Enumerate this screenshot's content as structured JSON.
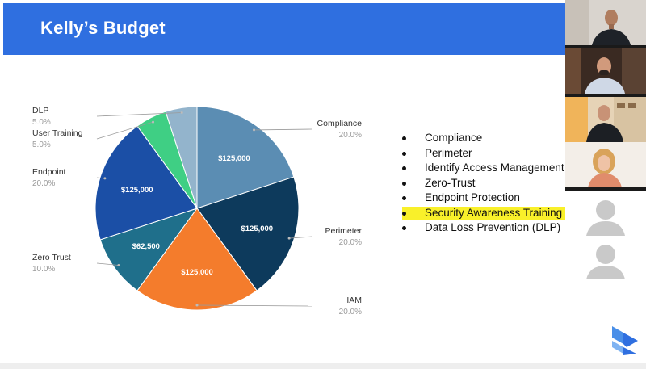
{
  "slide": {
    "title": "Kelly’s Budget",
    "bullets": [
      {
        "text": "Compliance",
        "highlighted": false
      },
      {
        "text": "Perimeter",
        "highlighted": false
      },
      {
        "text": "Identify Access Management",
        "highlighted": false
      },
      {
        "text": "Zero-Trust",
        "highlighted": false
      },
      {
        "text": "Endpoint Protection",
        "highlighted": false
      },
      {
        "text": "Security Awareness Training",
        "highlighted": true
      },
      {
        "text": "Data Loss Prevention (DLP)",
        "highlighted": false
      }
    ],
    "colors": {
      "banner": "#2f6fe0",
      "highlight": "#f9f02a"
    }
  },
  "chart_data": {
    "type": "pie",
    "categories": [
      "Compliance",
      "Perimeter",
      "IAM",
      "Zero Trust",
      "Endpoint",
      "User Training",
      "DLP"
    ],
    "values": [
      20.0,
      20.0,
      20.0,
      10.0,
      20.0,
      5.0,
      5.0
    ],
    "percent_labels": [
      "20.0%",
      "20.0%",
      "20.0%",
      "10.0%",
      "20.0%",
      "5.0%",
      "5.0%"
    ],
    "value_labels": [
      "$125,000",
      "$125,000",
      "$125,000",
      "$62,500",
      "$125,000",
      "",
      ""
    ],
    "colors": [
      "#5b8db3",
      "#0d3a5c",
      "#f47c2c",
      "#1f6f8b",
      "#1b4fa6",
      "#3fcf84",
      "#93b4cc"
    ]
  },
  "video_tiles": [
    {
      "kind": "camera",
      "label": "participant-1"
    },
    {
      "kind": "camera",
      "label": "participant-2"
    },
    {
      "kind": "camera",
      "label": "participant-3"
    },
    {
      "kind": "camera",
      "label": "participant-4"
    },
    {
      "kind": "avatar",
      "label": "participant-5"
    },
    {
      "kind": "avatar",
      "label": "participant-6"
    }
  ]
}
